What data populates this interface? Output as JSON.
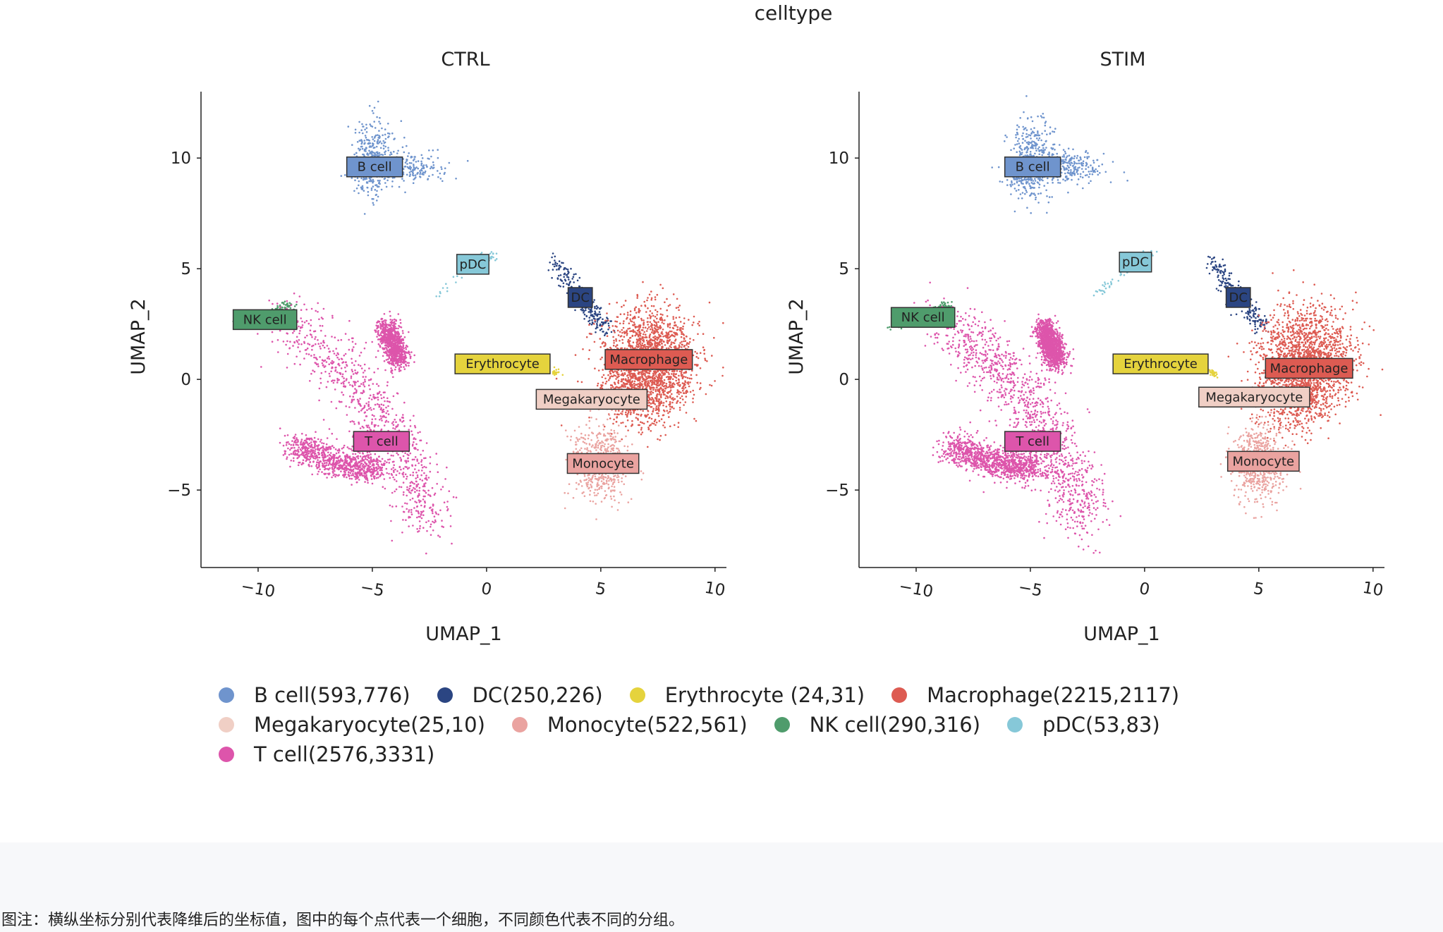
{
  "chart_data": {
    "type": "scatter",
    "title": "celltype",
    "panels": [
      {
        "name": "CTRL",
        "xlabel": "UMAP_1",
        "ylabel": "UMAP_2",
        "xlim": [
          -12.5,
          10.5
        ],
        "ylim": [
          -8.5,
          13
        ]
      },
      {
        "name": "STIM",
        "xlabel": "UMAP_1",
        "ylabel": "UMAP_2",
        "xlim": [
          -12.5,
          10.5
        ],
        "ylim": [
          -8.5,
          13
        ]
      }
    ],
    "xticks": [
      -10,
      -5,
      0,
      5,
      10
    ],
    "yticks": [
      -5,
      0,
      5,
      10
    ],
    "xtick_labels": [
      "−10",
      "−5",
      "0",
      "5",
      "10"
    ],
    "ytick_labels": [
      "−5",
      "0",
      "5",
      "10"
    ],
    "series": [
      {
        "name": "B cell",
        "legend": "B cell(593,776)",
        "color": "#6f94cd",
        "counts": [
          593,
          776
        ]
      },
      {
        "name": "DC",
        "legend": "DC(250,226)",
        "color": "#2b4582",
        "counts": [
          250,
          226
        ]
      },
      {
        "name": "Erythrocyte",
        "legend": "Erythrocyte (24,31)",
        "color": "#e5d33d",
        "counts": [
          24,
          31
        ]
      },
      {
        "name": "Macrophage",
        "legend": "Macrophage(2215,2117)",
        "color": "#dd5b52",
        "counts": [
          2215,
          2117
        ]
      },
      {
        "name": "Megakaryocyte",
        "legend": "Megakaryocyte(25,10)",
        "color": "#f0cfc5",
        "counts": [
          25,
          10
        ]
      },
      {
        "name": "Monocyte",
        "legend": "Monocyte(522,561)",
        "color": "#eaa3a0",
        "counts": [
          522,
          561
        ]
      },
      {
        "name": "NK cell",
        "legend": "NK cell(290,316)",
        "color": "#4f9c6c",
        "counts": [
          290,
          316
        ]
      },
      {
        "name": "pDC",
        "legend": "pDC(53,83)",
        "color": "#86c8d8",
        "counts": [
          53,
          83
        ]
      },
      {
        "name": "T cell",
        "legend": "T cell(2576,3331)",
        "color": "#dd55ab",
        "counts": [
          2576,
          3331
        ]
      }
    ],
    "labels": [
      [
        {
          "text": "B cell",
          "x": -4.9,
          "y": 9.6
        },
        {
          "text": "pDC",
          "x": -0.6,
          "y": 5.2
        },
        {
          "text": "DC",
          "x": 4.1,
          "y": 3.7
        },
        {
          "text": "NK cell",
          "x": -9.7,
          "y": 2.7
        },
        {
          "text": "Erythrocyte",
          "x": 0.7,
          "y": 0.7
        },
        {
          "text": "Macrophage",
          "x": 7.1,
          "y": 0.9
        },
        {
          "text": "Megakaryocyte",
          "x": 4.6,
          "y": -0.9
        },
        {
          "text": "T cell",
          "x": -4.6,
          "y": -2.8
        },
        {
          "text": "Monocyte",
          "x": 5.1,
          "y": -3.8
        }
      ],
      [
        {
          "text": "B cell",
          "x": -4.9,
          "y": 9.6
        },
        {
          "text": "pDC",
          "x": -0.4,
          "y": 5.3
        },
        {
          "text": "DC",
          "x": 4.1,
          "y": 3.7
        },
        {
          "text": "NK cell",
          "x": -9.7,
          "y": 2.8
        },
        {
          "text": "Erythrocyte",
          "x": 0.7,
          "y": 0.7
        },
        {
          "text": "Macrophage",
          "x": 7.2,
          "y": 0.5
        },
        {
          "text": "Megakaryocyte",
          "x": 4.8,
          "y": -0.8
        },
        {
          "text": "T cell",
          "x": -4.9,
          "y": -2.8
        },
        {
          "text": "Monocyte",
          "x": 5.2,
          "y": -3.7
        }
      ]
    ]
  },
  "caption": "图注：横纵坐标分别代表降维后的坐标值，图中的每个点代表一个细胞，不同颜色代表不同的分组。"
}
